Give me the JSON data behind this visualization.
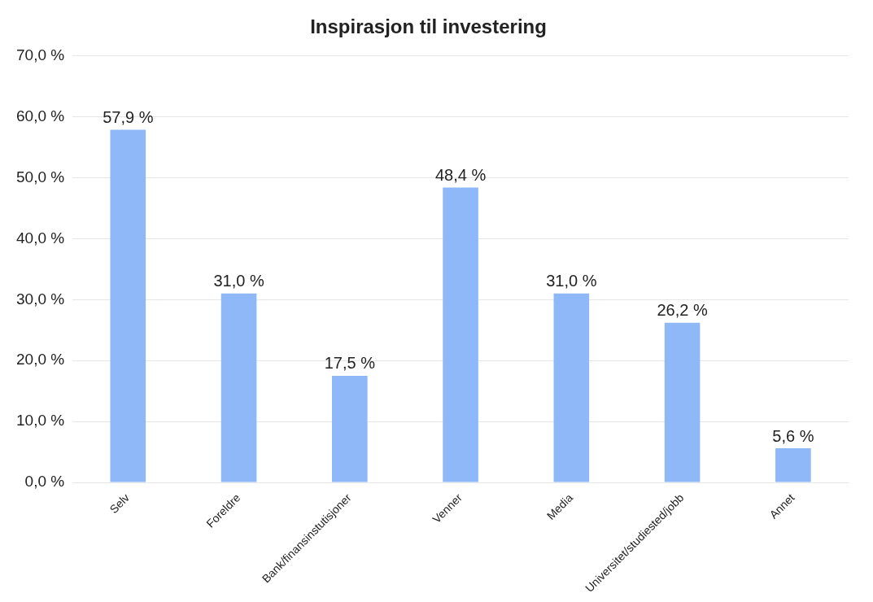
{
  "chart_data": {
    "type": "bar",
    "title": "Inspirasjon til investering",
    "categories": [
      "Selv",
      "Foreldre",
      "Bank/finansinstutisjoner",
      "Venner",
      "Media",
      "Universitet/studiested/jobb",
      "Annet"
    ],
    "values": [
      57.9,
      31.0,
      17.5,
      48.4,
      31.0,
      26.2,
      5.6
    ],
    "value_labels": [
      "57,9 %",
      "31,0 %",
      "17,5 %",
      "48,4 %",
      "31,0 %",
      "26,2 %",
      "5,6 %"
    ],
    "color": "#8fb8f8",
    "ylim": [
      0,
      70
    ],
    "yticks": [
      {
        "value": 0,
        "label": "0,0 %"
      },
      {
        "value": 10,
        "label": "10,0 %"
      },
      {
        "value": 20,
        "label": "20,0 %"
      },
      {
        "value": 30,
        "label": "30,0 %"
      },
      {
        "value": 40,
        "label": "40,0 %"
      },
      {
        "value": 50,
        "label": "50,0 %"
      },
      {
        "value": 60,
        "label": "60,0 %"
      },
      {
        "value": 70,
        "label": "70,0 %"
      }
    ],
    "grid": "y",
    "legend": false
  }
}
